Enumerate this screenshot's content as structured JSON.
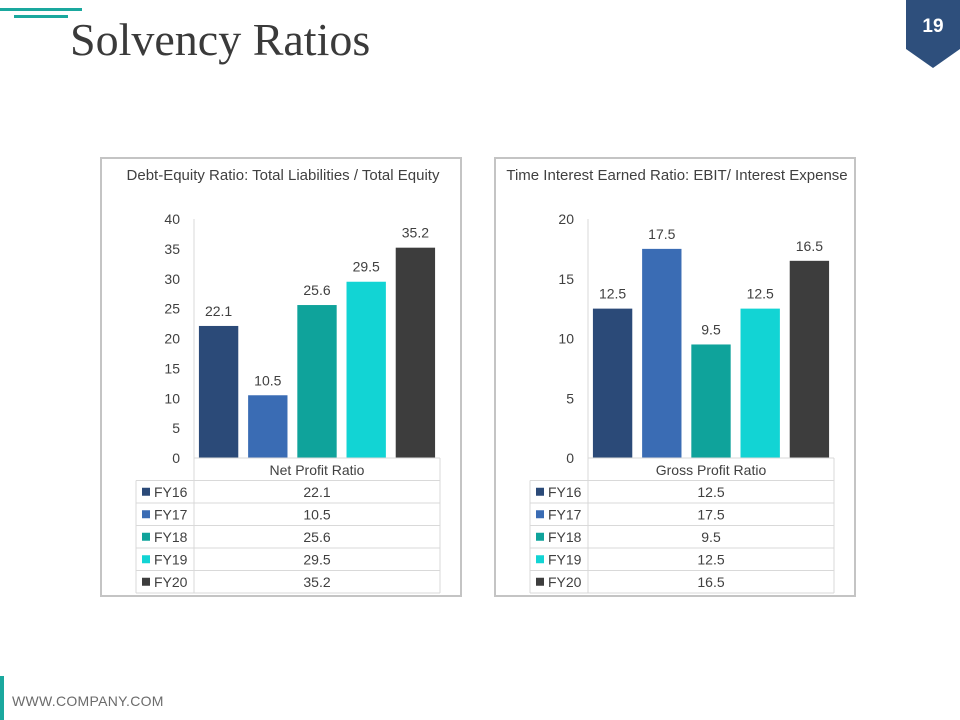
{
  "slide": {
    "title": "Solvency Ratios",
    "page_number": "19",
    "footer": "WWW.COMPANY.COM",
    "accent_color": "#1aa89e",
    "badge_color": "#2e4f7c"
  },
  "chart_data": [
    {
      "type": "bar",
      "title": "Debt-Equity Ratio: Total Liabilities / Total Equity",
      "categories": [
        "Net Profit Ratio"
      ],
      "series": [
        {
          "name": "FY16",
          "values": [
            22.1
          ],
          "color": "#2b4a78"
        },
        {
          "name": "FY17",
          "values": [
            10.5
          ],
          "color": "#3a6cb4"
        },
        {
          "name": "FY18",
          "values": [
            25.6
          ],
          "color": "#0fa39b"
        },
        {
          "name": "FY19",
          "values": [
            29.5
          ],
          "color": "#12d4d4"
        },
        {
          "name": "FY20",
          "values": [
            35.2
          ],
          "color": "#3d3d3d"
        }
      ],
      "ylim": [
        0,
        40
      ],
      "yticks": [
        0,
        5,
        10,
        15,
        20,
        25,
        30,
        35,
        40
      ],
      "data_labels": true,
      "data_table": true,
      "grid": false,
      "legend": "data-table"
    },
    {
      "type": "bar",
      "title": "Time Interest Earned Ratio: EBIT/ Interest Expense",
      "categories": [
        "Gross Profit Ratio"
      ],
      "series": [
        {
          "name": "FY16",
          "values": [
            12.5
          ],
          "color": "#2b4a78"
        },
        {
          "name": "FY17",
          "values": [
            17.5
          ],
          "color": "#3a6cb4"
        },
        {
          "name": "FY18",
          "values": [
            9.5
          ],
          "color": "#0fa39b"
        },
        {
          "name": "FY19",
          "values": [
            12.5
          ],
          "color": "#12d4d4"
        },
        {
          "name": "FY20",
          "values": [
            16.5
          ],
          "color": "#3d3d3d"
        }
      ],
      "ylim": [
        0,
        20
      ],
      "yticks": [
        0,
        5,
        10,
        15,
        20
      ],
      "data_labels": true,
      "data_table": true,
      "grid": false,
      "legend": "data-table"
    }
  ]
}
